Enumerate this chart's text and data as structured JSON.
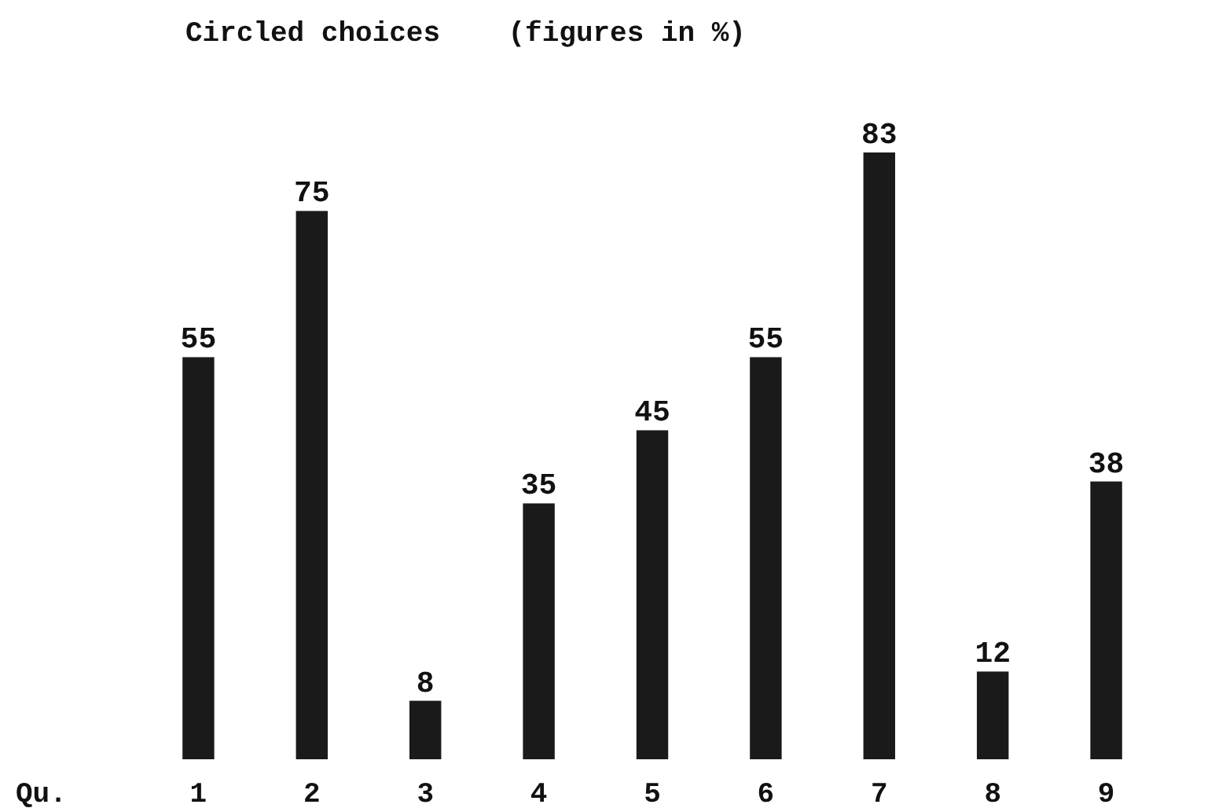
{
  "chart_data": {
    "type": "bar",
    "title": "Circled choices    (figures in %)",
    "xlabel": "Qu.",
    "categories": [
      "1",
      "2",
      "3",
      "4",
      "5",
      "6",
      "7",
      "8",
      "9"
    ],
    "values": [
      55,
      75,
      8,
      35,
      45,
      55,
      83,
      12,
      38
    ],
    "color": "#1a1a1a",
    "data_labels": true
  }
}
